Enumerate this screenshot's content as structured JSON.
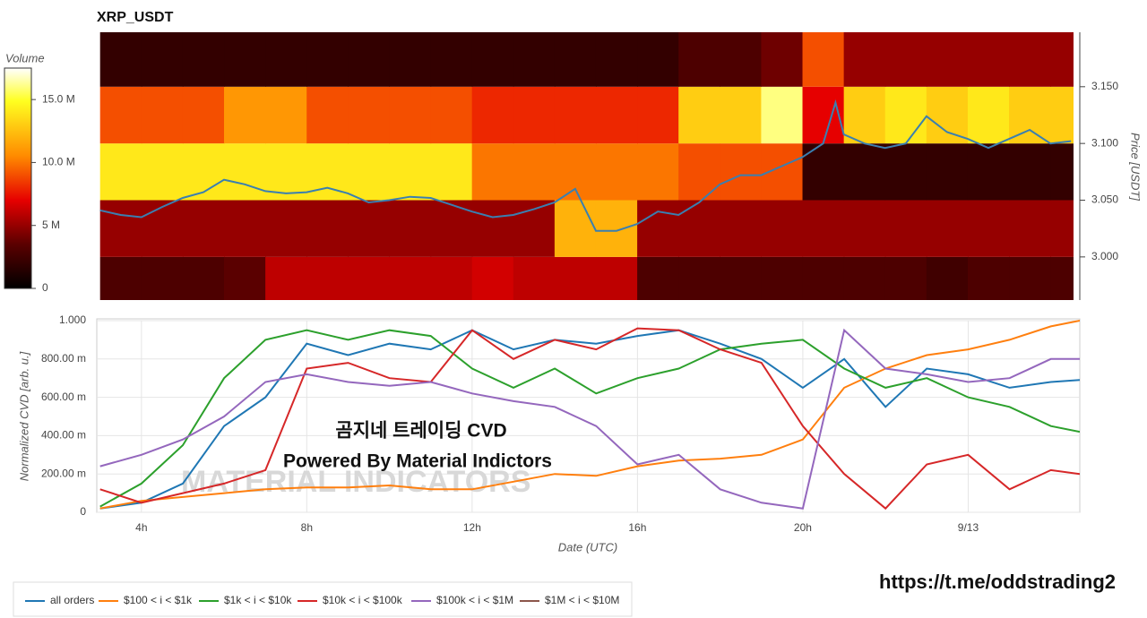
{
  "chart_data": [
    {
      "type": "heatmap",
      "title": "XRP_USDT",
      "ylabel": "Price [USDT]",
      "x": [
        3.5,
        4.5,
        5.5,
        6.5,
        7.5,
        8.5,
        9.5,
        10.5,
        11.5,
        12.5,
        13.5,
        14.5,
        15.5,
        16.5,
        17.5,
        18.5,
        19.5,
        20.5,
        21.5,
        22.5,
        23.5,
        24.5,
        25.5,
        26.5
      ],
      "y": [
        2.975,
        3.025,
        3.075,
        3.125,
        3.175
      ],
      "z": [
        [
          3,
          3,
          3,
          3.5,
          6,
          6,
          6,
          6,
          6,
          6.5,
          6,
          6,
          6,
          3,
          3,
          3,
          3,
          3,
          3,
          3,
          2.5,
          3,
          3,
          3
        ],
        [
          5,
          5,
          5,
          5,
          5,
          5,
          5,
          5,
          5,
          5,
          5,
          12,
          12,
          5,
          5,
          5,
          5,
          5,
          5,
          5,
          5,
          5,
          5,
          5
        ],
        [
          14,
          14,
          14,
          14,
          14,
          14,
          14,
          14,
          14,
          10,
          10,
          10,
          10,
          10,
          9,
          9,
          9,
          2,
          2,
          2,
          2,
          2,
          2,
          2
        ],
        [
          9,
          9,
          9,
          11,
          11,
          9,
          9,
          9,
          9,
          8,
          8,
          8,
          8,
          8,
          13,
          13,
          16,
          7,
          13,
          14,
          13,
          14,
          13,
          13
        ],
        [
          2,
          2,
          2,
          2,
          2,
          2,
          2,
          2,
          2,
          2,
          2,
          2,
          2,
          2,
          3,
          3,
          4,
          9,
          5,
          5,
          5,
          5,
          5,
          5
        ]
      ],
      "xlim": [
        2.92,
        26.56
      ],
      "ylim": [
        2.962,
        3.198
      ],
      "yticks": [
        {
          "value": 3.0,
          "label": "3.000"
        },
        {
          "value": 3.05,
          "label": "3.050"
        },
        {
          "value": 3.1,
          "label": "3.100"
        },
        {
          "value": 3.15,
          "label": "3.150"
        }
      ],
      "colorbar": {
        "title": "Volume",
        "lim": [
          0,
          17.5
        ],
        "ticks": [
          0,
          {
            "value": 5,
            "label": "5 M"
          },
          {
            "value": 10,
            "label": "10.0 M"
          },
          {
            "value": 15,
            "label": "15.0 M"
          }
        ]
      },
      "price": {
        "color": "#3a7fb0",
        "x": [
          3,
          3.5,
          4,
          4.5,
          5,
          5.5,
          6,
          6.5,
          7,
          7.5,
          8,
          8.5,
          9,
          9.5,
          10,
          10.5,
          11,
          11.5,
          12,
          12.5,
          13,
          13.5,
          14,
          14.5,
          15,
          15.5,
          16,
          16.5,
          17,
          17.5,
          18,
          18.5,
          19,
          19.5,
          20,
          20.5,
          20.8,
          21,
          21.5,
          22,
          22.5,
          23,
          23.5,
          24,
          24.5,
          25,
          25.5,
          26,
          26.5
        ],
        "values": [
          3.041,
          3.037,
          3.035,
          3.044,
          3.052,
          3.057,
          3.068,
          3.064,
          3.058,
          3.056,
          3.057,
          3.061,
          3.056,
          3.048,
          3.05,
          3.053,
          3.052,
          3.046,
          3.04,
          3.035,
          3.037,
          3.042,
          3.048,
          3.06,
          3.023,
          3.023,
          3.029,
          3.04,
          3.037,
          3.048,
          3.064,
          3.072,
          3.072,
          3.08,
          3.088,
          3.1,
          3.136,
          3.108,
          3.1,
          3.096,
          3.1,
          3.124,
          3.11,
          3.104,
          3.096,
          3.104,
          3.112,
          3.1,
          3.102
        ]
      }
    },
    {
      "type": "line",
      "xlabel": "Date (UTC)",
      "ylabel": "Normalized CVD [arb. u.]",
      "grid": true,
      "x": [
        3,
        4,
        5,
        6,
        7,
        8,
        9,
        10,
        11,
        12,
        13,
        14,
        15,
        16,
        17,
        18,
        19,
        20,
        21,
        22,
        23,
        24,
        25,
        26,
        26.7
      ],
      "xlim": [
        2.92,
        26.7
      ],
      "ylim": [
        0,
        1
      ],
      "xticks": [
        {
          "value": 4,
          "label": "4h"
        },
        {
          "value": 8,
          "label": "8h"
        },
        {
          "value": 12,
          "label": "12h"
        },
        {
          "value": 16,
          "label": "16h"
        },
        {
          "value": 20,
          "label": "20h"
        },
        {
          "value": 24,
          "label": "9/13"
        }
      ],
      "yticks": [
        0,
        {
          "value": 0.2,
          "label": "200.00 m"
        },
        {
          "value": 0.4,
          "label": "400.00 m"
        },
        {
          "value": 0.6,
          "label": "600.00 m"
        },
        {
          "value": 0.8,
          "label": "800.00 m"
        },
        {
          "value": 1,
          "label": "1.000"
        }
      ],
      "series": [
        {
          "name": "all orders",
          "color": "#1f77b4",
          "values": [
            0.02,
            0.05,
            0.15,
            0.45,
            0.6,
            0.88,
            0.82,
            0.88,
            0.85,
            0.95,
            0.85,
            0.9,
            0.88,
            0.92,
            0.95,
            0.88,
            0.8,
            0.65,
            0.8,
            0.55,
            0.75,
            0.72,
            0.65,
            0.68,
            0.69
          ]
        },
        {
          "name": "$100 < i < $1k",
          "color": "#ff7f0e",
          "values": [
            0.02,
            0.06,
            0.08,
            0.1,
            0.12,
            0.13,
            0.13,
            0.14,
            0.12,
            0.12,
            0.16,
            0.2,
            0.19,
            0.24,
            0.27,
            0.28,
            0.3,
            0.38,
            0.65,
            0.75,
            0.82,
            0.85,
            0.9,
            0.97,
            1.0
          ]
        },
        {
          "name": "$1k < i < $10k",
          "color": "#2ca02c",
          "values": [
            0.03,
            0.15,
            0.35,
            0.7,
            0.9,
            0.95,
            0.9,
            0.95,
            0.92,
            0.75,
            0.65,
            0.75,
            0.62,
            0.7,
            0.75,
            0.85,
            0.88,
            0.9,
            0.75,
            0.65,
            0.7,
            0.6,
            0.55,
            0.45,
            0.42
          ]
        },
        {
          "name": "$10k < i < $100k",
          "color": "#d62728",
          "values": [
            0.12,
            0.05,
            0.1,
            0.15,
            0.22,
            0.75,
            0.78,
            0.7,
            0.68,
            0.95,
            0.8,
            0.9,
            0.85,
            0.96,
            0.95,
            0.85,
            0.78,
            0.45,
            0.2,
            0.02,
            0.25,
            0.3,
            0.12,
            0.22,
            0.2
          ]
        },
        {
          "name": "$100k < i < $1M",
          "color": "#9467bd",
          "values": [
            0.24,
            0.3,
            0.38,
            0.5,
            0.68,
            0.72,
            0.68,
            0.66,
            0.68,
            0.62,
            0.58,
            0.55,
            0.45,
            0.25,
            0.3,
            0.12,
            0.05,
            0.02,
            0.95,
            0.75,
            0.72,
            0.68,
            0.7,
            0.8,
            0.8
          ]
        },
        {
          "name": "$1M < i < $10M",
          "color": "#8c564b",
          "values": [
            null,
            null,
            null,
            null,
            null,
            null,
            null,
            null,
            null,
            null,
            null,
            null,
            null,
            null,
            null,
            null,
            null,
            null,
            null,
            null,
            null,
            null,
            null,
            null,
            null
          ]
        }
      ],
      "annotations": [
        "곰지네 트레이딩 CVD",
        "Powered By Material Indictors",
        "MATERIAL INDICATORS"
      ]
    }
  ],
  "footer": "https://t.me/oddstrading2"
}
